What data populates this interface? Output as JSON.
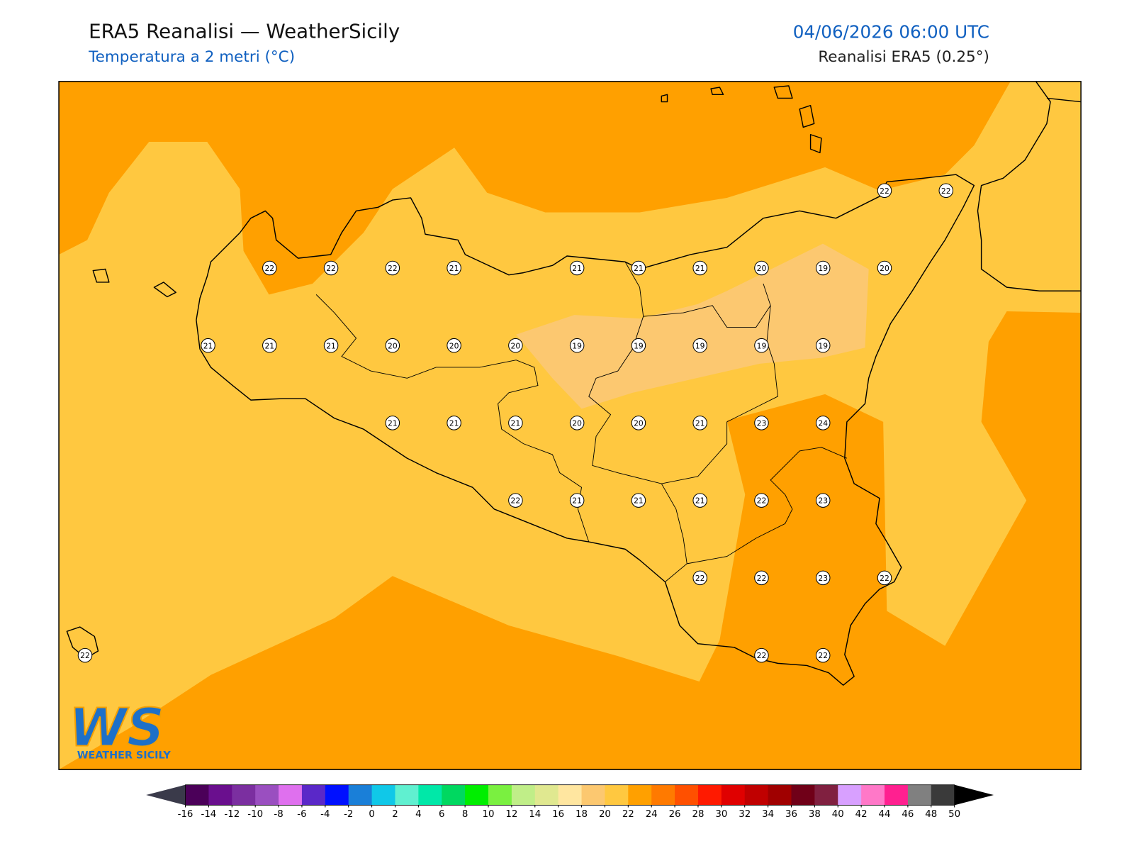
{
  "header": {
    "title": "ERA5 Reanalisi — WeatherSicily",
    "subtitle": "Temperatura a 2 metri (°C)",
    "datetime": "04/06/2026 06:00 UTC",
    "source": "Reanalisi ERA5 (0.25°)"
  },
  "stations": [
    22,
    22,
    22,
    22,
    22,
    21,
    21,
    21,
    21,
    20,
    19,
    20,
    21,
    21,
    21,
    20,
    20,
    20,
    19,
    19,
    19,
    19,
    19,
    21,
    21,
    21,
    20,
    20,
    21,
    23,
    24,
    22,
    21,
    21,
    21,
    22,
    23,
    22,
    22,
    23,
    22,
    22,
    22,
    22
  ],
  "colorbar": {
    "ticks": [
      -16,
      -14,
      -12,
      -10,
      -8,
      -6,
      -4,
      -2,
      0,
      2,
      4,
      6,
      8,
      10,
      12,
      14,
      16,
      18,
      20,
      22,
      24,
      26,
      28,
      30,
      32,
      34,
      36,
      38,
      40,
      42,
      44,
      46,
      48,
      50
    ],
    "colors": [
      "#4b0059",
      "#6a0f8e",
      "#7b2fa0",
      "#9a4fc0",
      "#df70ee",
      "#5a28c8",
      "#0010ff",
      "#1a7fd8",
      "#10c8e8",
      "#60f0d0",
      "#00e8a8",
      "#00d860",
      "#00ee00",
      "#7af040",
      "#c0ee88",
      "#e0e890",
      "#ffe6a0",
      "#fcc870",
      "#ffc840",
      "#ffa000",
      "#ff7a00",
      "#ff5000",
      "#ff1a00",
      "#e00000",
      "#c00000",
      "#a00000",
      "#700018",
      "#802040",
      "#d8a0ff",
      "#ff78c8",
      "#ff2090",
      "#808080",
      "#3a3a3a"
    ],
    "under": "#3a3a4a",
    "over": "#000000"
  },
  "logo": {
    "mark": "WS",
    "name": "WEATHER SICILY"
  }
}
